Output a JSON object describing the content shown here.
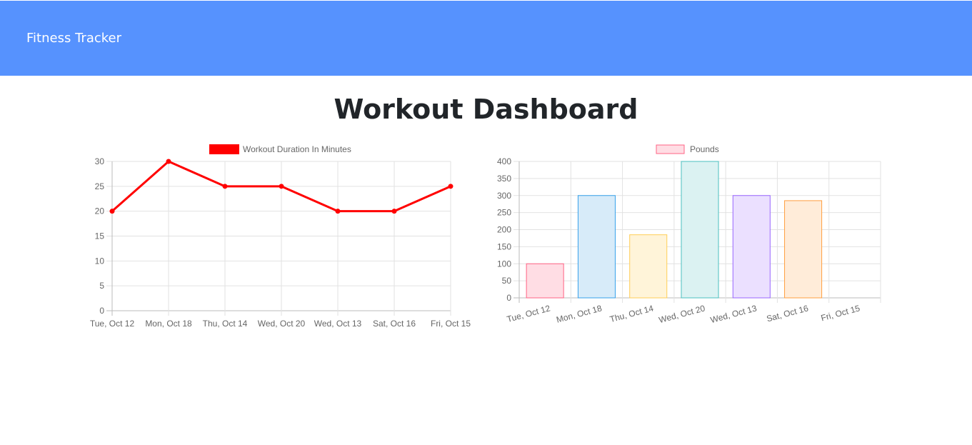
{
  "navbar": {
    "brand": "Fitness Tracker"
  },
  "page": {
    "title": "Workout Dashboard"
  },
  "chart_data": [
    {
      "type": "line",
      "categories": [
        "Tue, Oct 12",
        "Mon, Oct 18",
        "Thu, Oct 14",
        "Wed, Oct 20",
        "Wed, Oct 13",
        "Sat, Oct 16",
        "Fri, Oct 15"
      ],
      "series": [
        {
          "name": "Workout Duration In Minutes",
          "values": [
            20,
            30,
            25,
            25,
            20,
            20,
            25
          ],
          "color": "#ff0000"
        }
      ],
      "ylim": [
        0,
        30
      ],
      "yticks": [
        0,
        5,
        10,
        15,
        20,
        25,
        30
      ],
      "grid": true,
      "legend": "top-center"
    },
    {
      "type": "bar",
      "categories": [
        "Tue, Oct 12",
        "Mon, Oct 18",
        "Thu, Oct 14",
        "Wed, Oct 20",
        "Wed, Oct 13",
        "Sat, Oct 16",
        "Fri, Oct 15"
      ],
      "series": [
        {
          "name": "Pounds",
          "values": [
            100,
            300,
            185,
            400,
            300,
            285,
            0
          ]
        }
      ],
      "bar_fill_colors": [
        "#ffdde4",
        "#d7ebf9",
        "#fff4d9",
        "#dbf2f2",
        "#ebe0ff",
        "#ffecd9",
        "#f4f5f5"
      ],
      "bar_border_colors": [
        "#ff6384",
        "#36a2eb",
        "#ffce56",
        "#4bc0c0",
        "#9966ff",
        "#ff9f40",
        "#c9cbcf"
      ],
      "ylim": [
        0,
        400
      ],
      "yticks": [
        0,
        50,
        100,
        150,
        200,
        250,
        300,
        350,
        400
      ],
      "grid": true,
      "legend": "top-center",
      "legend_swatch": {
        "fill": "#ffdde4",
        "border": "#ff6384"
      }
    }
  ]
}
